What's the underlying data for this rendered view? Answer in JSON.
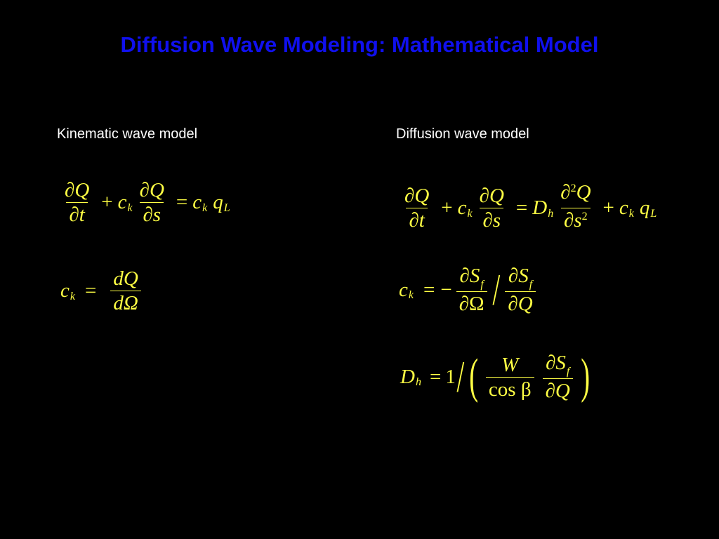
{
  "title": "Diffusion Wave Modeling: Mathematical Model",
  "left": {
    "heading": "Kinematic wave model",
    "eq1": {
      "n1": "∂Q",
      "d1": "∂t",
      "plus": "+",
      "c": "c",
      "k": "k",
      "n2": "∂Q",
      "d2": "∂s",
      "eq": "=",
      "c2": "c",
      "k2": "k",
      "q": "q",
      "L": "L"
    },
    "eq2": {
      "c": "c",
      "k": "k",
      "eq": "=",
      "num": "dQ",
      "den": "dΩ"
    }
  },
  "right": {
    "heading": "Diffusion wave model",
    "eq1": {
      "n1": "∂Q",
      "d1": "∂t",
      "plus": "+",
      "c": "c",
      "k": "k",
      "n2": "∂Q",
      "d2": "∂s",
      "eq": "=",
      "D": "D",
      "h": "h",
      "n3a": "∂",
      "n3sup": "2",
      "n3b": "Q",
      "d3a": "∂s",
      "d3sup": "2",
      "plus2": "+",
      "c2": "c",
      "k2": "k",
      "q": "q",
      "L": "L"
    },
    "eq2": {
      "c": "c",
      "k": "k",
      "eq": "=",
      "minus": "−",
      "n1": "∂S",
      "f1": "f",
      "d1": "∂Ω",
      "slash": "/",
      "n2": "∂S",
      "f2": "f",
      "d2": "∂Q"
    },
    "eq3": {
      "D": "D",
      "h": "h",
      "eq": "=",
      "one": "1",
      "slash": "/",
      "lparen": "(",
      "n1": "W",
      "d1": "cos β",
      "n2": "∂S",
      "f2": "f",
      "d2": "∂Q",
      "rparen": ")"
    }
  },
  "colors": {
    "title": "#1010ee",
    "equations": "#ffff44",
    "headings": "#ffffff",
    "background": "#000000"
  }
}
